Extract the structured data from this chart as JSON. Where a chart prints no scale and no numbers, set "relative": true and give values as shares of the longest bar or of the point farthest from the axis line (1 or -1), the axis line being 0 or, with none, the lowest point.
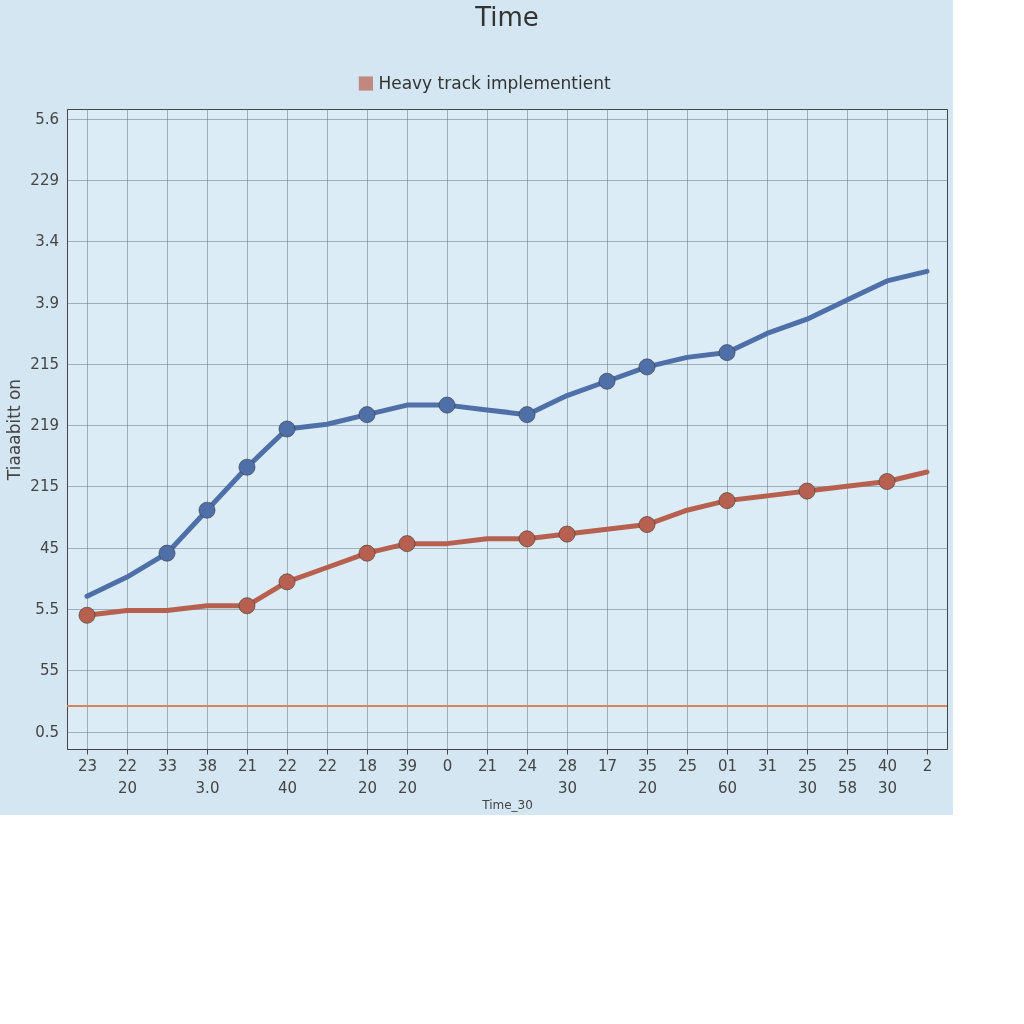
{
  "chart_data": {
    "type": "line",
    "title": "Time",
    "xlabel": "Time_30",
    "ylabel": "Tiaaabitt on",
    "categories": [
      "23",
      "22\n20",
      "33",
      "38\n3.0",
      "21",
      "22\n40",
      "22",
      "18\n20",
      "39\n20",
      "0",
      "21",
      "24",
      "28\n30",
      "17",
      "35\n20",
      "25",
      "01\n60",
      "31",
      "25\n30",
      "25\n58",
      "40\n30",
      "2"
    ],
    "relative": true,
    "annotations": [
      "5.6",
      "229",
      "3.4",
      "3.9",
      "215",
      "219",
      "215",
      "45",
      "5.5",
      "55",
      "0.5"
    ],
    "series": [
      {
        "color": "#4f6fa8",
        "values": [
          0.32,
          0.36,
          0.41,
          0.5,
          0.59,
          0.67,
          0.68,
          0.7,
          0.72,
          0.72,
          0.71,
          0.7,
          0.74,
          0.77,
          0.8,
          0.82,
          0.83,
          0.87,
          0.9,
          0.94,
          0.98,
          1
        ]
      },
      {
        "name": "Heavy track implementient",
        "color": "#b8604f",
        "values": [
          0.28,
          0.29,
          0.29,
          0.3,
          0.3,
          0.35,
          0.38,
          0.41,
          0.43,
          0.43,
          0.44,
          0.44,
          0.45,
          0.46,
          0.47,
          0.5,
          0.52,
          0.53,
          0.54,
          0.55,
          0.56,
          0.58
        ]
      },
      {
        "type": "scatter",
        "marker": "circle",
        "color": "#4f6fa8",
        "values": [
          null,
          null,
          0.41,
          0.5,
          0.59,
          0.67,
          null,
          0.7,
          null,
          0.72,
          null,
          0.7,
          null,
          0.77,
          0.8,
          null,
          0.83,
          null,
          null,
          null,
          null,
          null
        ]
      },
      {
        "type": "scatter",
        "marker": "circle",
        "color": "#b8604f",
        "values": [
          0.28,
          null,
          null,
          null,
          0.3,
          0.35,
          null,
          0.41,
          0.43,
          null,
          null,
          0.44,
          0.45,
          null,
          0.47,
          null,
          0.52,
          null,
          0.54,
          null,
          0.56,
          null
        ]
      }
    ],
    "ref_lines": [
      {
        "axis": "y",
        "value": 0.09,
        "color": "#d9835e"
      }
    ],
    "grid": true,
    "legend": "top"
  }
}
